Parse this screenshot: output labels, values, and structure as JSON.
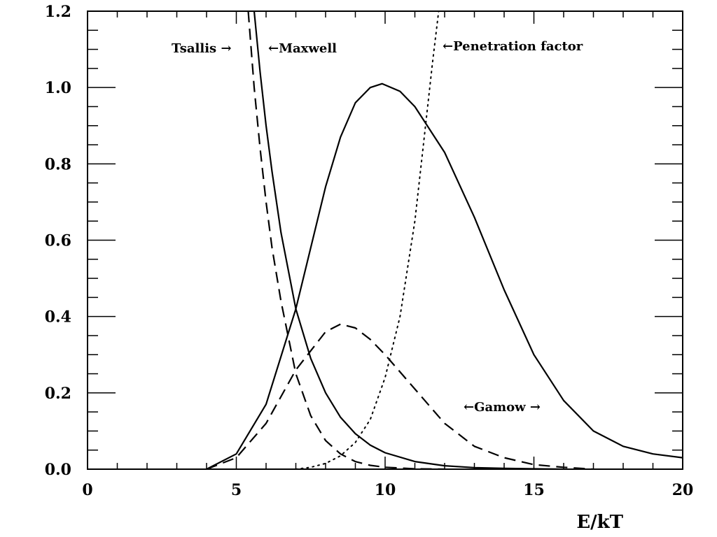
{
  "chart_data": {
    "type": "line",
    "title": "",
    "xlabel": "E/kT",
    "ylabel": "",
    "xlim": [
      0,
      20
    ],
    "ylim": [
      0,
      1.2
    ],
    "grid": false,
    "x_ticks": [
      "0",
      "5",
      "10",
      "15",
      "20"
    ],
    "y_ticks": [
      "0.0",
      "0.2",
      "0.4",
      "0.6",
      "0.8",
      "1.0",
      "1.2"
    ],
    "series": [
      {
        "name": "Maxwell",
        "style": "solid",
        "x": [
          5.6,
          5.8,
          6.0,
          6.2,
          6.5,
          7.0,
          7.5,
          8.0,
          8.5,
          9.0,
          9.5,
          10.0,
          11.0,
          12.0,
          13.0,
          14.0,
          15.0,
          16.0
        ],
        "y": [
          1.2,
          1.04,
          0.9,
          0.78,
          0.62,
          0.42,
          0.29,
          0.2,
          0.136,
          0.093,
          0.063,
          0.043,
          0.02,
          0.009,
          0.004,
          0.002,
          0.001,
          0.0
        ]
      },
      {
        "name": "Tsallis",
        "style": "dashed",
        "x": [
          5.4,
          5.6,
          5.8,
          6.0,
          6.2,
          6.5,
          7.0,
          7.5,
          8.0,
          8.5,
          9.0,
          9.5,
          10.0,
          11.0,
          12.0
        ],
        "y": [
          1.2,
          1.0,
          0.84,
          0.7,
          0.58,
          0.44,
          0.25,
          0.14,
          0.075,
          0.04,
          0.02,
          0.01,
          0.005,
          0.001,
          0.0
        ]
      },
      {
        "name": "Penetration factor",
        "style": "dotted",
        "x": [
          7.0,
          7.5,
          8.0,
          8.5,
          9.0,
          9.5,
          10.0,
          10.5,
          11.0,
          11.3,
          11.6,
          11.8
        ],
        "y": [
          0.0,
          0.005,
          0.015,
          0.035,
          0.07,
          0.13,
          0.24,
          0.4,
          0.65,
          0.86,
          1.07,
          1.2
        ]
      },
      {
        "name": "Gamow",
        "style": "solid",
        "x": [
          4.0,
          5.0,
          6.0,
          7.0,
          8.0,
          8.5,
          9.0,
          9.5,
          9.9,
          10.5,
          11.0,
          12.0,
          13.0,
          14.0,
          15.0,
          16.0,
          17.0,
          18.0,
          19.0,
          20.0
        ],
        "y": [
          0.0,
          0.04,
          0.17,
          0.42,
          0.74,
          0.87,
          0.96,
          1.0,
          1.01,
          0.99,
          0.95,
          0.83,
          0.66,
          0.47,
          0.3,
          0.18,
          0.1,
          0.06,
          0.04,
          0.03
        ]
      },
      {
        "name": "Gamow",
        "style": "dashed",
        "x": [
          4.0,
          5.0,
          6.0,
          7.0,
          8.0,
          8.5,
          9.0,
          9.5,
          10.0,
          11.0,
          12.0,
          13.0,
          14.0,
          15.0,
          16.0,
          17.0
        ],
        "y": [
          0.0,
          0.03,
          0.12,
          0.26,
          0.36,
          0.38,
          0.37,
          0.34,
          0.3,
          0.21,
          0.12,
          0.06,
          0.03,
          0.012,
          0.005,
          0.0
        ]
      }
    ],
    "annotations": {
      "tsallis": "Tsallis →",
      "maxwell": "←Maxwell",
      "penetration": "←Penetration factor",
      "gamow": "←Gamow →"
    }
  }
}
